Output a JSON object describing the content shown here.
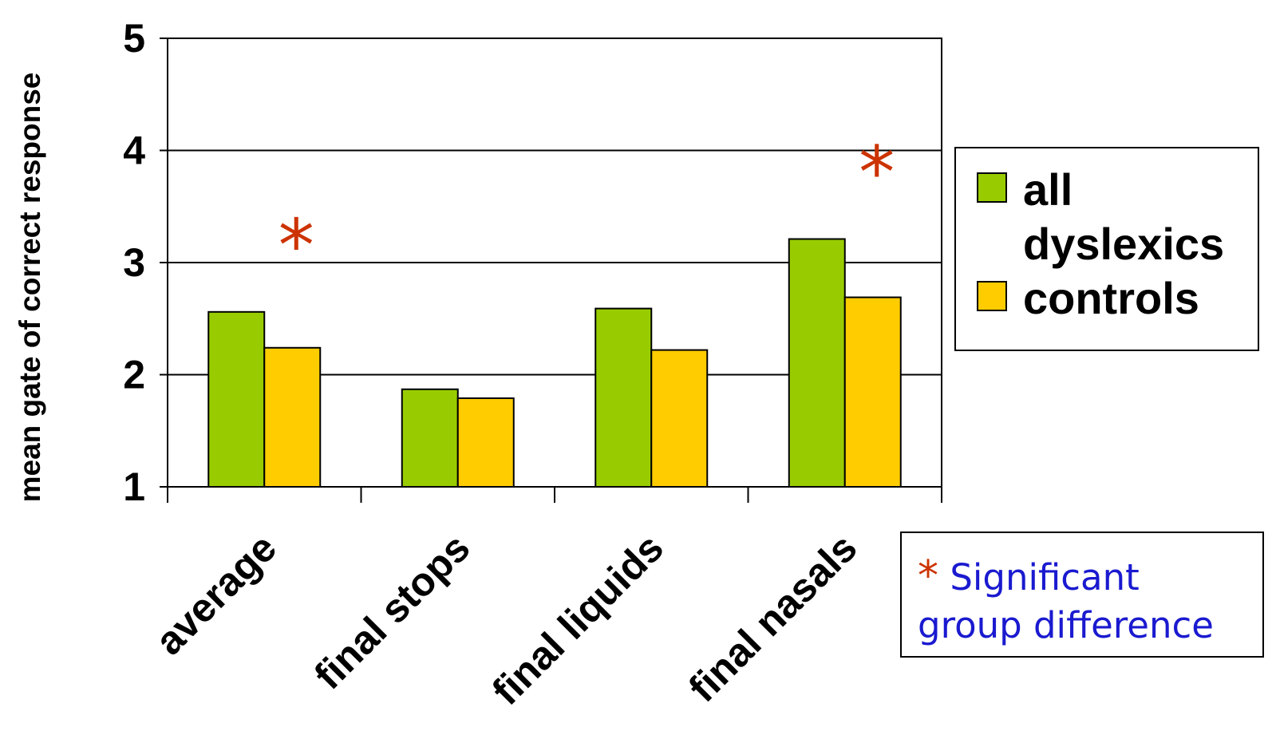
{
  "chart_data": {
    "type": "bar",
    "categories": [
      "average",
      "final stops",
      "final liquids",
      "final nasals"
    ],
    "series": [
      {
        "name": "all dyslexics",
        "color": "#99cc00",
        "values": [
          2.56,
          1.87,
          2.59,
          3.21
        ]
      },
      {
        "name": "controls",
        "color": "#ffcc00",
        "values": [
          2.24,
          1.79,
          2.22,
          2.69
        ]
      }
    ],
    "ylabel": "mean gate of correct response",
    "xlabel": "",
    "ylim": [
      1,
      5
    ],
    "yticks": [
      1,
      2,
      3,
      4,
      5
    ],
    "grid": true,
    "legend_position": "right",
    "significant_categories": [
      "average",
      "final nasals"
    ],
    "significance_marker": "*",
    "significance_color": "#cc3300"
  },
  "legend": {
    "items": [
      {
        "label": "all dyslexics",
        "color": "#99cc00"
      },
      {
        "label": "controls",
        "color": "#ffcc00"
      }
    ]
  },
  "note": {
    "star": "*",
    "line1": "Significant",
    "line2": "group difference"
  }
}
